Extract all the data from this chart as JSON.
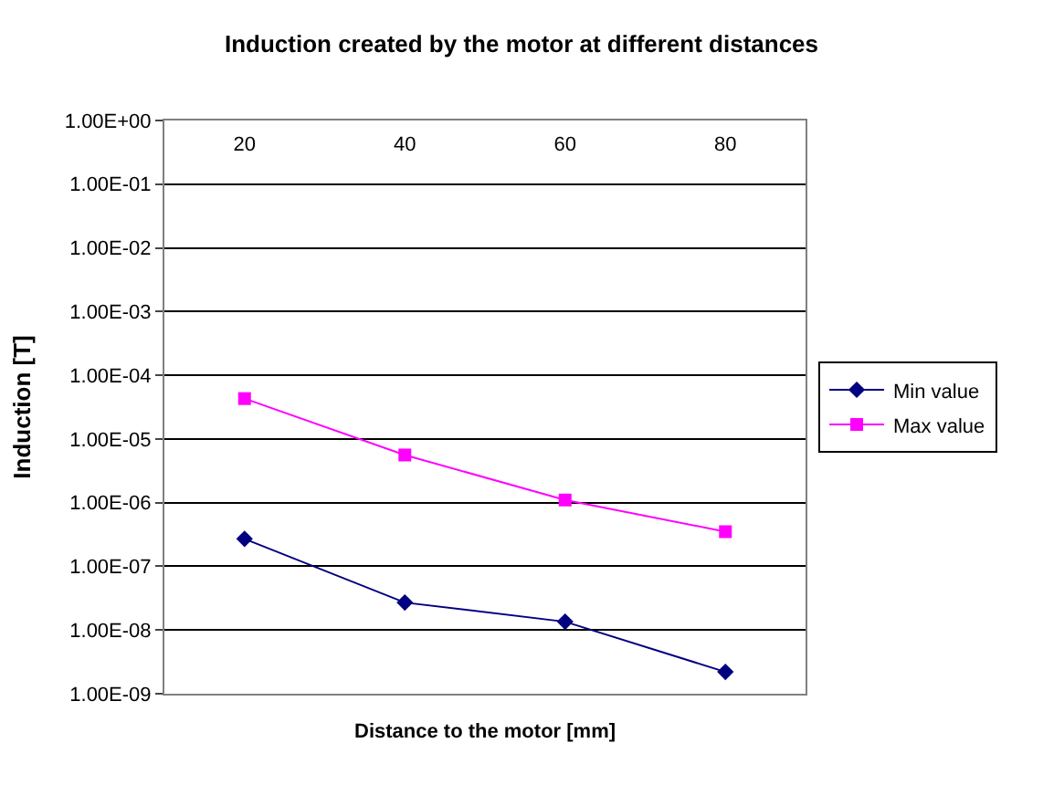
{
  "chart_data": {
    "type": "line",
    "title": "Induction created by the motor at different distances",
    "xlabel": "Distance to the motor [mm]",
    "ylabel": "Induction [T]",
    "categories": [
      "20",
      "40",
      "60",
      "80"
    ],
    "series": [
      {
        "name": "Min value",
        "color": "#000080",
        "marker": "diamond",
        "values": [
          2.7e-07,
          2.7e-08,
          1.35e-08,
          2.2e-09
        ]
      },
      {
        "name": "Max value",
        "color": "#ff00ff",
        "marker": "square",
        "values": [
          4.3e-05,
          5.6e-06,
          1.1e-06,
          3.5e-07
        ]
      }
    ],
    "log": "y",
    "ylim": [
      1e-09,
      1
    ],
    "yticks": [
      {
        "value": 1e-09,
        "label": "1.00E-09"
      },
      {
        "value": 1e-08,
        "label": "1.00E-08"
      },
      {
        "value": 1e-07,
        "label": "1.00E-07"
      },
      {
        "value": 1e-06,
        "label": "1.00E-06"
      },
      {
        "value": 1e-05,
        "label": "1.00E-05"
      },
      {
        "value": 0.0001,
        "label": "1.00E-04"
      },
      {
        "value": 0.001,
        "label": "1.00E-03"
      },
      {
        "value": 0.01,
        "label": "1.00E-02"
      },
      {
        "value": 0.1,
        "label": "1.00E-01"
      },
      {
        "value": 1,
        "label": "1.00E+00"
      }
    ],
    "grid": "y",
    "legend": "right",
    "line_style": "solid"
  }
}
